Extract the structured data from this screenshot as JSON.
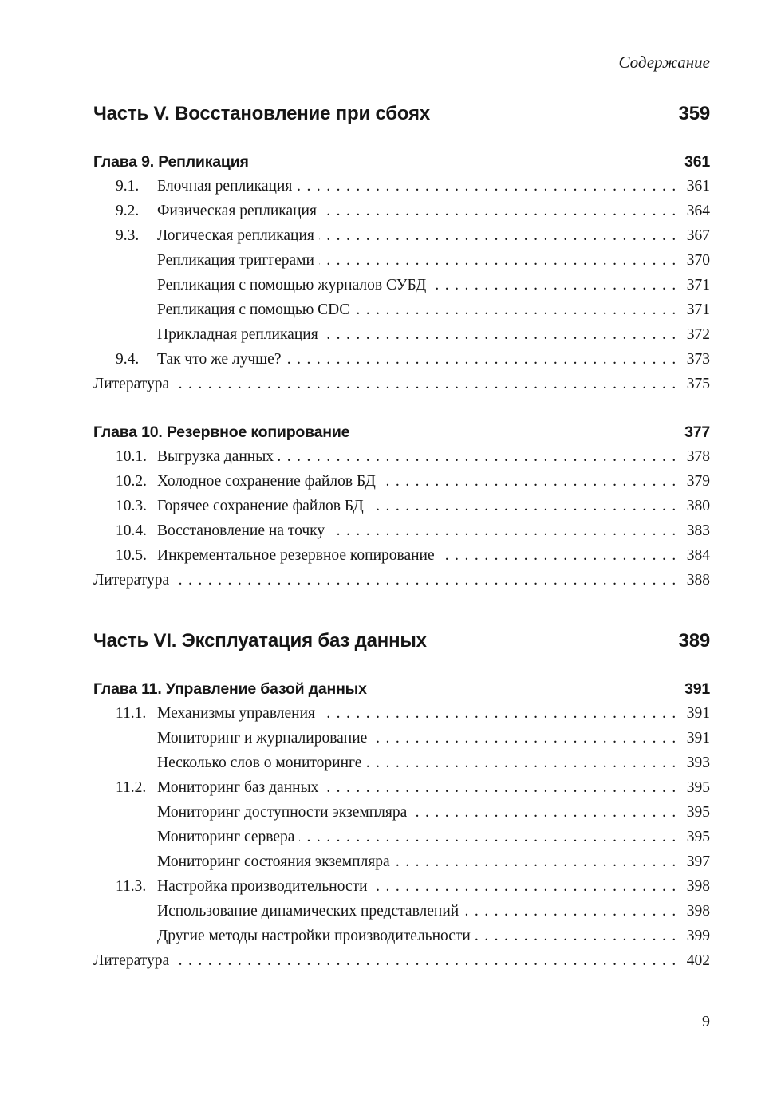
{
  "theme": {
    "background": "#ffffff",
    "text_color": "#161616"
  },
  "page": {
    "header": "Содержание",
    "footer_page_number": "9"
  },
  "toc": {
    "parts": [
      {
        "title": "Часть V. Восстановление при сбоях",
        "page": "359",
        "chapters": [
          {
            "title": "Глава 9. Репликация",
            "page": "361",
            "entries": [
              {
                "num": "9.1.",
                "title": "Блочная репликация",
                "page": "361"
              },
              {
                "num": "9.2.",
                "title": "Физическая репликация",
                "page": "364"
              },
              {
                "num": "9.3.",
                "title": "Логическая репликация",
                "page": "367"
              },
              {
                "num": "",
                "title": "Репликация триггерами",
                "page": "370"
              },
              {
                "num": "",
                "title": "Репликация с помощью журналов СУБД",
                "page": "371"
              },
              {
                "num": "",
                "title": "Репликация с помощью CDC",
                "page": "371"
              },
              {
                "num": "",
                "title": "Прикладная репликация",
                "page": "372"
              },
              {
                "num": "9.4.",
                "title": "Так что же лучше?",
                "page": "373"
              }
            ],
            "literature": {
              "title": "Литература",
              "page": "375"
            }
          },
          {
            "title": "Глава 10. Резервное копирование",
            "page": "377",
            "entries": [
              {
                "num": "10.1.",
                "title": "Выгрузка данных",
                "page": "378"
              },
              {
                "num": "10.2.",
                "title": "Холодное сохранение файлов БД",
                "page": "379"
              },
              {
                "num": "10.3.",
                "title": "Горячее сохранение файлов БД",
                "page": "380"
              },
              {
                "num": "10.4.",
                "title": "Восстановление на точку",
                "page": "383"
              },
              {
                "num": "10.5.",
                "title": "Инкрементальное резервное копирование",
                "page": "384"
              }
            ],
            "literature": {
              "title": "Литература",
              "page": "388"
            }
          }
        ]
      },
      {
        "title": "Часть VI. Эксплуатация баз данных",
        "page": "389",
        "chapters": [
          {
            "title": "Глава 11. Управление базой данных",
            "page": "391",
            "entries": [
              {
                "num": "11.1.",
                "title": "Механизмы управления",
                "page": "391"
              },
              {
                "num": "",
                "title": "Мониторинг и журналирование",
                "page": "391"
              },
              {
                "num": "",
                "title": "Несколько слов о мониторинге",
                "page": "393"
              },
              {
                "num": "11.2.",
                "title": "Мониторинг баз данных",
                "page": "395"
              },
              {
                "num": "",
                "title": "Мониторинг доступности экземпляра",
                "page": "395"
              },
              {
                "num": "",
                "title": "Мониторинг сервера",
                "page": "395"
              },
              {
                "num": "",
                "title": "Мониторинг состояния экземпляра",
                "page": "397"
              },
              {
                "num": "11.3.",
                "title": "Настройка производительности",
                "page": "398"
              },
              {
                "num": "",
                "title": "Использование динамических представлений",
                "page": "398"
              },
              {
                "num": "",
                "title": "Другие методы настройки производительности",
                "page": "399"
              }
            ],
            "literature": {
              "title": "Литература",
              "page": "402"
            }
          }
        ]
      }
    ]
  }
}
